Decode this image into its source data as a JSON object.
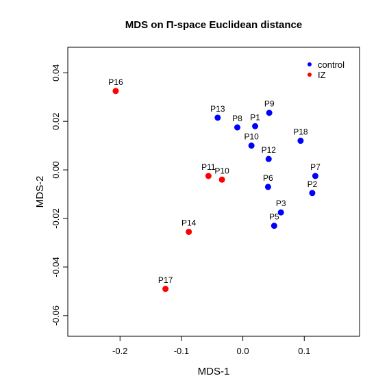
{
  "chart_data": {
    "type": "scatter",
    "title": "MDS on Π-space Euclidean distance",
    "xlabel": "MDS-1",
    "ylabel": "MDS-2",
    "xlim": [
      -0.285,
      0.19
    ],
    "ylim": [
      -0.0685,
      0.0505
    ],
    "x_ticks": [
      -0.2,
      -0.1,
      0.0,
      0.1
    ],
    "x_tick_labels": [
      "-0.2",
      "-0.1",
      "0.0",
      "0.1"
    ],
    "y_ticks": [
      -0.06,
      -0.04,
      -0.02,
      0.0,
      0.02,
      0.04
    ],
    "y_tick_labels": [
      "-0.06",
      "-0.04",
      "-0.02",
      "0.00",
      "0.02",
      "0.04"
    ],
    "grid": false,
    "legend_position": "top-right",
    "series": [
      {
        "name": "control",
        "color": "#0000ff",
        "points": [
          {
            "label": "P13",
            "x": -0.041,
            "y": 0.0215
          },
          {
            "label": "P8",
            "x": -0.009,
            "y": 0.0175
          },
          {
            "label": "P1",
            "x": 0.02,
            "y": 0.018
          },
          {
            "label": "P9",
            "x": 0.043,
            "y": 0.0235
          },
          {
            "label": "P10",
            "x": 0.014,
            "y": 0.01
          },
          {
            "label": "P18",
            "x": 0.094,
            "y": 0.012
          },
          {
            "label": "P12",
            "x": 0.042,
            "y": 0.0045
          },
          {
            "label": "P7",
            "x": 0.118,
            "y": -0.0025
          },
          {
            "label": "P6",
            "x": 0.041,
            "y": -0.007
          },
          {
            "label": "P2",
            "x": 0.113,
            "y": -0.0095
          },
          {
            "label": "P3",
            "x": 0.062,
            "y": -0.0175
          },
          {
            "label": "P5",
            "x": 0.051,
            "y": -0.023
          }
        ]
      },
      {
        "name": "IZ",
        "color": "#ff0000",
        "points": [
          {
            "label": "P16",
            "x": -0.207,
            "y": 0.0325
          },
          {
            "label": "P11",
            "x": -0.056,
            "y": -0.0025
          },
          {
            "label": "P10",
            "x": -0.034,
            "y": -0.004
          },
          {
            "label": "P14",
            "x": -0.088,
            "y": -0.0255
          },
          {
            "label": "P17",
            "x": -0.126,
            "y": -0.049
          }
        ]
      }
    ]
  }
}
